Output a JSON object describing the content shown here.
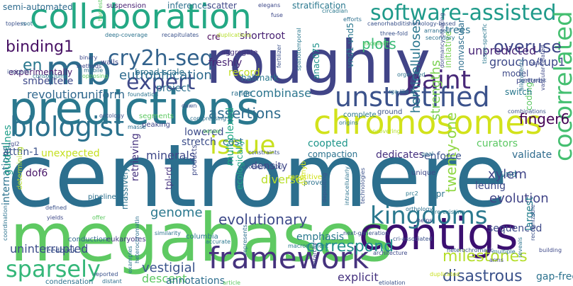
{
  "cloud": {
    "words": [
      {
        "text": "centromere",
        "color": "#2c6f8e"
      },
      {
        "text": "megabases",
        "color": "#5ec962"
      },
      {
        "text": "roughly",
        "color": "#414487"
      },
      {
        "text": "predictions",
        "color": "#2a788e"
      },
      {
        "text": "collaboration",
        "color": "#23a884"
      },
      {
        "text": "chromosomes",
        "color": "#d2e21b"
      },
      {
        "text": "contigs",
        "color": "#3b0f70"
      },
      {
        "text": "mb",
        "color": "#2e6e8e"
      },
      {
        "text": "framework",
        "color": "#46327e"
      },
      {
        "text": "kingdoms",
        "color": "#2a788e"
      },
      {
        "text": "software-assisted",
        "color": "#1f9a8a"
      },
      {
        "text": "unstratified",
        "color": "#3b528b"
      },
      {
        "text": "biologist",
        "color": "#2c728e"
      },
      {
        "text": "cry2h-seq",
        "color": "#33638d"
      },
      {
        "text": "paint",
        "color": "#482878"
      },
      {
        "text": "issue",
        "color": "#c8e020"
      },
      {
        "text": "cocorrelated",
        "color": "#44bf70"
      },
      {
        "text": "sparsely",
        "color": "#35b779"
      },
      {
        "text": "expert",
        "color": "#3e4989"
      },
      {
        "text": "binding1",
        "color": "#471164"
      },
      {
        "text": "overuse",
        "color": "#3f4788"
      },
      {
        "text": "disastrous",
        "color": "#3b528b"
      },
      {
        "text": "en",
        "color": "#2a788e"
      },
      {
        "text": "correspond",
        "color": "#218f8d"
      },
      {
        "text": "milestones",
        "color": "#b5de2b"
      },
      {
        "text": "evolutionary",
        "color": "#3e4a89"
      },
      {
        "text": "finger6",
        "color": "#440154"
      },
      {
        "text": "assertions",
        "color": "#2f6c8e"
      },
      {
        "text": "twenty-one",
        "color": "#90d743"
      },
      {
        "text": "strengths",
        "color": "#7ad151"
      },
      {
        "text": "hemicelluloses",
        "color": "#2a768e"
      },
      {
        "text": "xylem",
        "color": "#404688"
      },
      {
        "text": "eutrophication",
        "color": "#2f6b8e"
      },
      {
        "text": "plots",
        "color": "#3aba76"
      },
      {
        "text": "evolution",
        "color": "#414487"
      },
      {
        "text": "recombinase",
        "color": "#2b758e"
      },
      {
        "text": "vestigial",
        "color": "#3a548c"
      },
      {
        "text": "revolution",
        "color": "#31688e"
      },
      {
        "text": "uniform",
        "color": "#31688e"
      },
      {
        "text": "minerals",
        "color": "#3f4889"
      },
      {
        "text": "genome",
        "color": "#2a788e"
      },
      {
        "text": "descent",
        "color": "#5cc863"
      },
      {
        "text": "explicit",
        "color": "#46337f"
      },
      {
        "text": "annotations",
        "color": "#2e6e8e"
      },
      {
        "text": "uninterrupted",
        "color": "#3d4d8a"
      },
      {
        "text": "international",
        "color": "#2c738e"
      },
      {
        "text": "retrieving",
        "color": "#46337f"
      },
      {
        "text": "multiplexed",
        "color": "#22a785"
      },
      {
        "text": "unpredicted",
        "color": "#482576"
      },
      {
        "text": "groucho/tup1",
        "color": "#3e4989"
      },
      {
        "text": "diverse",
        "color": "#b8de29"
      },
      {
        "text": "project",
        "color": "#2d708e"
      },
      {
        "text": "shortroot",
        "color": "#482173"
      },
      {
        "text": "trees",
        "color": "#2c728e"
      },
      {
        "text": "record",
        "color": "#c2df23"
      },
      {
        "text": "density",
        "color": "#404688"
      },
      {
        "text": "coopted",
        "color": "#1f968b"
      },
      {
        "text": "compaction",
        "color": "#2c728e"
      },
      {
        "text": "guidelines",
        "color": "#1f9e89"
      },
      {
        "text": "sequenced",
        "color": "#3e4a89"
      },
      {
        "text": "dedicates",
        "color": "#46307e"
      },
      {
        "text": "enforce",
        "color": "#3b528b"
      },
      {
        "text": "validate",
        "color": "#2f6c8e"
      },
      {
        "text": "curators",
        "color": "#5cc863"
      },
      {
        "text": "unexpected",
        "color": "#c5e021"
      },
      {
        "text": "attfin-1",
        "color": "#3b528b"
      },
      {
        "text": "dof6",
        "color": "#481668"
      },
      {
        "text": "cost",
        "color": "#2d708e"
      },
      {
        "text": "stretch",
        "color": "#3d4e8a"
      },
      {
        "text": "lowered",
        "color": "#3e4c8a"
      },
      {
        "text": "emphasis",
        "color": "#2a788e"
      },
      {
        "text": "largest",
        "color": "#27808e"
      },
      {
        "text": "leunig",
        "color": "#3e4a89"
      },
      {
        "text": "gap-free",
        "color": "#2c728e"
      },
      {
        "text": "smbe/tere",
        "color": "#3e4989"
      },
      {
        "text": "freshly",
        "color": "#482475"
      },
      {
        "text": "broad-scale",
        "color": "#2c738e"
      },
      {
        "text": "experimentally",
        "color": "#481b6d"
      },
      {
        "text": "semi-automated",
        "color": "#2f6b8e"
      },
      {
        "text": "suspension",
        "color": "#482173"
      },
      {
        "text": "inferences",
        "color": "#2d708e"
      },
      {
        "text": "scatter",
        "color": "#3f4788"
      },
      {
        "text": "stratification",
        "color": "#2a788e"
      },
      {
        "text": "vnd1-vnd5",
        "color": "#2a778e"
      },
      {
        "text": "anac075",
        "color": "#20928c"
      },
      {
        "text": "initiative",
        "color": "#7ad151"
      },
      {
        "text": "nonvascular",
        "color": "#2e6f8e"
      },
      {
        "text": "tpl-rd",
        "color": "#46337f"
      },
      {
        "text": "hallmark",
        "color": "#2a788e"
      },
      {
        "text": "ecologically",
        "color": "#22a785"
      },
      {
        "text": "massively",
        "color": "#2c738e"
      },
      {
        "text": "coding",
        "color": "#5cc863"
      },
      {
        "text": "switch",
        "color": "#2a788e"
      },
      {
        "text": "model",
        "color": "#3e4a89"
      },
      {
        "text": "perturb",
        "color": "#3f4788"
      },
      {
        "text": "vnd",
        "color": "#2c728e"
      },
      {
        "text": "tpr",
        "color": "#2c738e"
      },
      {
        "text": "repetitive",
        "color": "#d0e11c"
      },
      {
        "text": "products",
        "color": "#3e4989"
      },
      {
        "text": "pipeline",
        "color": "#2d708e"
      },
      {
        "text": "columbia",
        "color": "#2a788e"
      },
      {
        "text": "conduction",
        "color": "#31688e"
      },
      {
        "text": "eukaryotes",
        "color": "#443a83"
      },
      {
        "text": "feedback",
        "color": "#3b528b"
      },
      {
        "text": "condensation",
        "color": "#2c728e"
      },
      {
        "text": "article",
        "color": "#5ec962"
      },
      {
        "text": "etiolation",
        "color": "#3b528b"
      },
      {
        "text": "segments",
        "color": "#5ec962"
      },
      {
        "text": "peaking",
        "color": "#3f4788"
      },
      {
        "text": "walls",
        "color": "#3e4989"
      },
      {
        "text": "aggregate",
        "color": "#46327e"
      },
      {
        "text": "cre",
        "color": "#440154"
      },
      {
        "text": "range",
        "color": "#2d708e"
      },
      {
        "text": "complete",
        "color": "#2a788e"
      },
      {
        "text": "ground",
        "color": "#3b528b"
      },
      {
        "text": "origins",
        "color": "#2a788e"
      },
      {
        "text": "uncovering",
        "color": "#b5de2b"
      },
      {
        "text": "goal",
        "color": "#2d708e"
      },
      {
        "text": "constraints",
        "color": "#3b528b"
      },
      {
        "text": "prove",
        "color": "#2c728e"
      },
      {
        "text": "unique",
        "color": "#3e4989"
      },
      {
        "text": "accurate",
        "color": "#2a788e"
      },
      {
        "text": "similarity",
        "color": "#2c738e"
      },
      {
        "text": "hierarchy",
        "color": "#3f4788"
      },
      {
        "text": "represents",
        "color": "#2d708e"
      },
      {
        "text": "macronutrient",
        "color": "#2a788e"
      },
      {
        "text": "technologies",
        "color": "#3b528b"
      },
      {
        "text": "intracellularly",
        "color": "#2c738e"
      },
      {
        "text": "depositing",
        "color": "#3b528b"
      },
      {
        "text": "pre-existing",
        "color": "#2a788e"
      },
      {
        "text": "architecture",
        "color": "#3e4989"
      },
      {
        "text": "heterochromatic",
        "color": "#3b528b"
      },
      {
        "text": "multiple",
        "color": "#2c728e"
      },
      {
        "text": "arms",
        "color": "#3f4788"
      },
      {
        "text": "distant",
        "color": "#2d708e"
      },
      {
        "text": "reported",
        "color": "#3b528b"
      },
      {
        "text": "examples",
        "color": "#2a788e"
      },
      {
        "text": "offer",
        "color": "#5ec962"
      },
      {
        "text": "yields",
        "color": "#3e4989"
      },
      {
        "text": "defined",
        "color": "#3b528b"
      },
      {
        "text": "coordination",
        "color": "#2c728e"
      },
      {
        "text": "building",
        "color": "#3e4989"
      },
      {
        "text": "reveals",
        "color": "#2c738e"
      },
      {
        "text": "recognizable",
        "color": "#3b528b"
      },
      {
        "text": "heterochromatin",
        "color": "#2d708e"
      },
      {
        "text": "methods",
        "color": "#3e4989"
      },
      {
        "text": "insights",
        "color": "#3b528b"
      },
      {
        "text": "consortium",
        "color": "#2a788e"
      },
      {
        "text": "binary",
        "color": "#3e4989"
      },
      {
        "text": "mobile",
        "color": "#2d708e"
      },
      {
        "text": "opposing",
        "color": "#5ec962"
      },
      {
        "text": "topless",
        "color": "#3b528b"
      },
      {
        "text": "root",
        "color": "#2c728e"
      },
      {
        "text": "harvested",
        "color": "#5ec962"
      },
      {
        "text": "elegans",
        "color": "#3e4989"
      },
      {
        "text": "caenorhabditis",
        "color": "#3b528b"
      },
      {
        "text": "secondary",
        "color": "#2c738e"
      },
      {
        "text": "excellent",
        "color": "#5ec962"
      },
      {
        "text": "three-fold",
        "color": "#3b528b"
      },
      {
        "text": "arranged",
        "color": "#2d708e"
      },
      {
        "text": "tissue-specific",
        "color": "#2a788e"
      },
      {
        "text": "bulk",
        "color": "#3e4989"
      },
      {
        "text": "network",
        "color": "#3b528b"
      },
      {
        "text": "organized",
        "color": "#2c728e"
      },
      {
        "text": "dormancy-breaking",
        "color": "#3e4989"
      },
      {
        "text": "rga-like2",
        "color": "#2d708e"
      },
      {
        "text": "fertilizer",
        "color": "#3b528b"
      },
      {
        "text": "spatiotemporal",
        "color": "#2a788e"
      },
      {
        "text": "duplications",
        "color": "#b5de2b"
      },
      {
        "text": "deep-coverage",
        "color": "#2c738e"
      },
      {
        "text": "recapitulates",
        "color": "#3b528b"
      },
      {
        "text": "fuse",
        "color": "#3e4989"
      },
      {
        "text": "efforts",
        "color": "#2d708e"
      },
      {
        "text": "homology-based",
        "color": "#3b528b"
      },
      {
        "text": "circadian",
        "color": "#2a788e"
      },
      {
        "text": "combinations",
        "color": "#3b528b"
      },
      {
        "text": "alignments",
        "color": "#2c728e"
      },
      {
        "text": "vascular-related",
        "color": "#3e4989"
      },
      {
        "text": "ontology",
        "color": "#3b528b"
      },
      {
        "text": "masse",
        "color": "#2d708e"
      },
      {
        "text": "dawn",
        "color": "#3b528b"
      },
      {
        "text": "foundation",
        "color": "#2c738e"
      },
      {
        "text": "vessel",
        "color": "#5ec962"
      },
      {
        "text": "next-generation",
        "color": "#3b528b"
      },
      {
        "text": "prc2",
        "color": "#2a788e"
      },
      {
        "text": "helps",
        "color": "#3e4989"
      },
      {
        "text": "orthology",
        "color": "#2d708e"
      },
      {
        "text": "cri-associated",
        "color": "#3b528b"
      },
      {
        "text": "rgl2",
        "color": "#3e4989"
      },
      {
        "text": "vnd7",
        "color": "#2c738e"
      },
      {
        "text": "coexpression",
        "color": "#3b528b"
      },
      {
        "text": "gamyb",
        "color": "#d2e21b"
      },
      {
        "text": "compressing",
        "color": "#2d708e"
      },
      {
        "text": "duplicated",
        "color": "#c8e020"
      },
      {
        "text": "determining",
        "color": "#b5de2b"
      }
    ]
  }
}
